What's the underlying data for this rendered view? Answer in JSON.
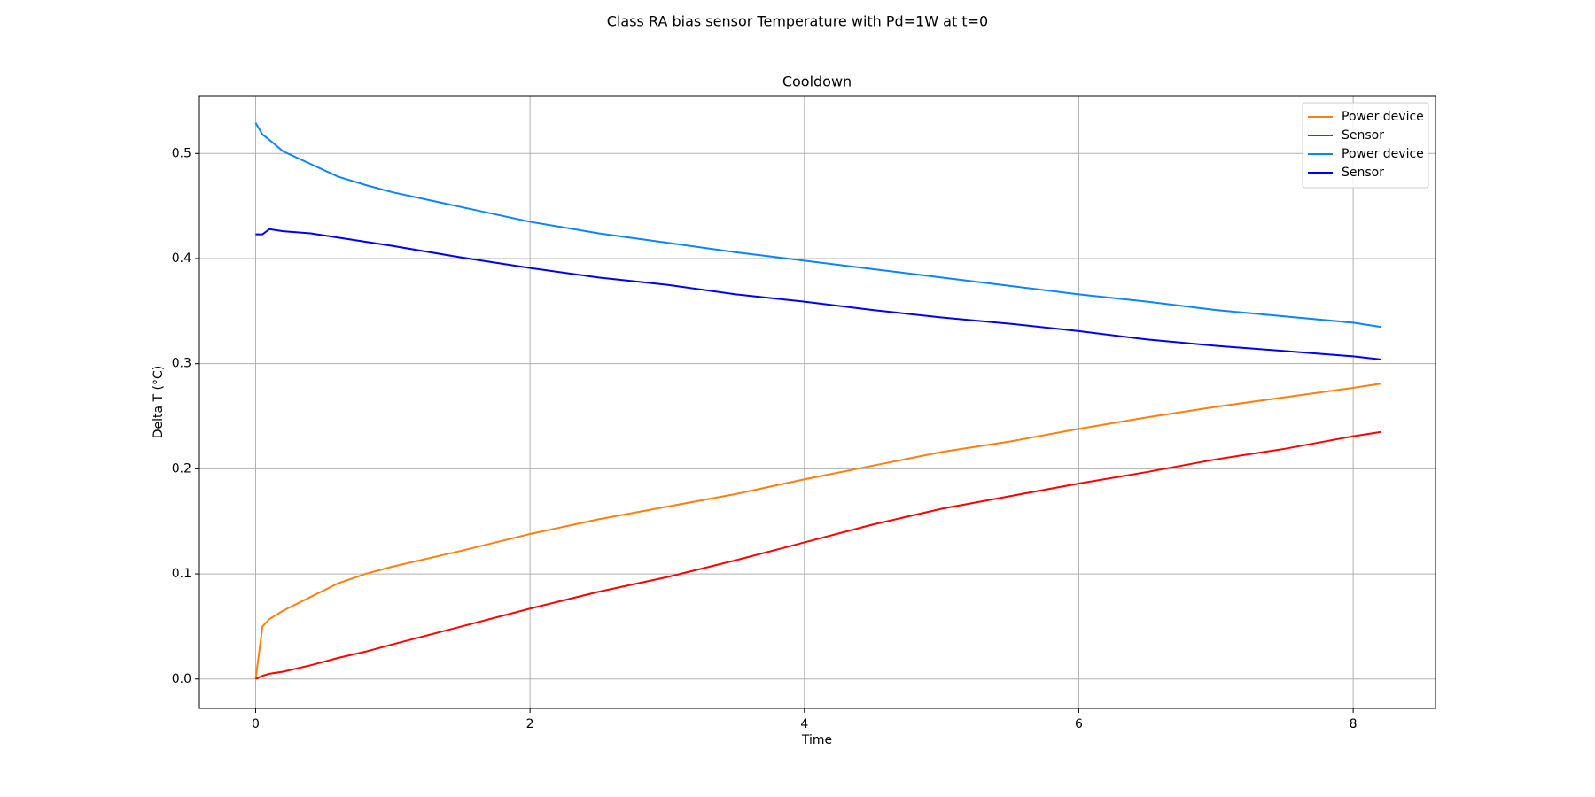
{
  "chart_data": {
    "type": "line",
    "suptitle": "Class RA bias sensor Temperature with Pd=1W at t=0",
    "title": "Cooldown",
    "x_label": "Time",
    "y_label": "Delta T (°C)",
    "x": [
      0,
      0.05,
      0.1,
      0.2,
      0.4,
      0.6,
      0.8,
      1,
      1.5,
      2,
      2.5,
      3,
      3.5,
      4,
      4.5,
      5,
      5.5,
      6,
      6.5,
      7,
      7.5,
      8,
      8.2
    ],
    "series": [
      {
        "name": "Power device",
        "color": "#ff7f0e",
        "values": [
          0,
          0.05,
          0.057,
          0.065,
          0.078,
          0.091,
          0.1,
          0.107,
          0.122,
          0.138,
          0.152,
          0.164,
          0.176,
          0.19,
          0.203,
          0.216,
          0.226,
          0.238,
          0.249,
          0.259,
          0.268,
          0.277,
          0.281
        ]
      },
      {
        "name": "Sensor",
        "color": "#ff0000",
        "values": [
          0,
          0.003,
          0.005,
          0.007,
          0.013,
          0.02,
          0.026,
          0.033,
          0.05,
          0.067,
          0.083,
          0.097,
          0.113,
          0.13,
          0.147,
          0.162,
          0.174,
          0.186,
          0.197,
          0.209,
          0.219,
          0.231,
          0.235
        ]
      },
      {
        "name": "Power device",
        "color": "#0a84ff",
        "values": [
          0.529,
          0.518,
          0.513,
          0.502,
          0.49,
          0.478,
          0.47,
          0.463,
          0.449,
          0.435,
          0.424,
          0.415,
          0.406,
          0.398,
          0.39,
          0.382,
          0.374,
          0.366,
          0.359,
          0.351,
          0.345,
          0.339,
          0.335
        ]
      },
      {
        "name": "Sensor",
        "color": "#0000ee",
        "values": [
          0.423,
          0.423,
          0.428,
          0.426,
          0.424,
          0.42,
          0.416,
          0.412,
          0.401,
          0.391,
          0.382,
          0.375,
          0.366,
          0.359,
          0.351,
          0.344,
          0.338,
          0.331,
          0.323,
          0.317,
          0.312,
          0.307,
          0.304
        ]
      }
    ],
    "xlim": [
      -0.41,
      8.6
    ],
    "ylim": [
      -0.028,
      0.555
    ],
    "xticks": [
      0,
      2,
      4,
      6,
      8
    ],
    "yticks": [
      {
        "value": 0,
        "label": "0.0"
      },
      0.1,
      0.2,
      0.3,
      0.4,
      0.5
    ],
    "grid": true,
    "legend": "upper right"
  }
}
